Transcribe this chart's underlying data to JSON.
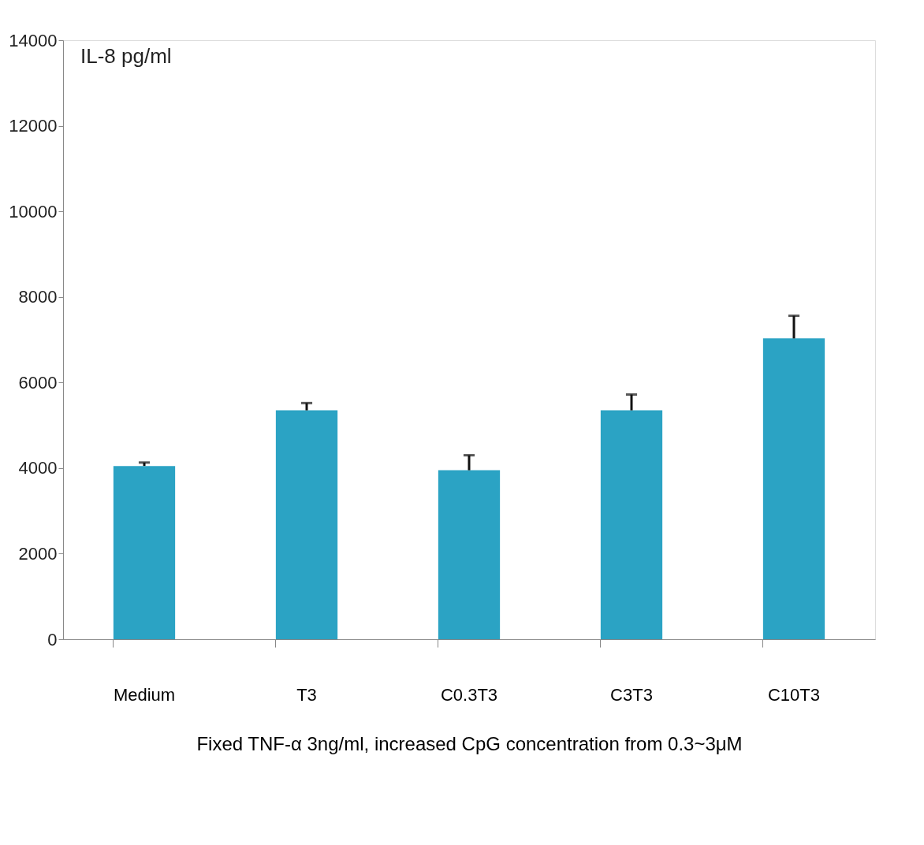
{
  "chart_data": {
    "type": "bar",
    "ylabel": "IL-8 pg/ml",
    "xlabel": "Fixed  TNF-α 3ng/ml,  increased CpG concentration from 0.3~3μM",
    "categories": [
      "Medium",
      "T3",
      "C0.3T3",
      "C3T3",
      "C10T3"
    ],
    "values": [
      4050,
      5350,
      3950,
      5350,
      7030
    ],
    "errors": [
      [
        4050,
        4130
      ],
      [
        5350,
        5520
      ],
      [
        3950,
        4300
      ],
      [
        5350,
        5720
      ],
      [
        7030,
        7560
      ]
    ],
    "color": "#2ba3c4",
    "ylim": [
      0,
      14000
    ],
    "yticks": [
      0,
      2000,
      4000,
      6000,
      8000,
      10000,
      12000,
      14000
    ],
    "grid": false
  }
}
